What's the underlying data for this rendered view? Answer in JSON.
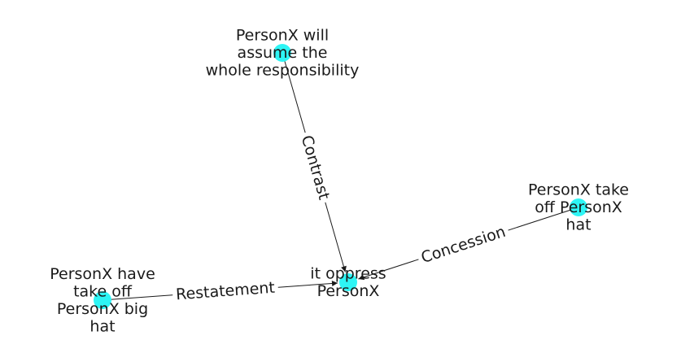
{
  "graph": {
    "node_color": "#2ef5f5",
    "edge_color": "#1a1a1a",
    "directed": true,
    "nodes": [
      {
        "id": "center",
        "label_lines": [
          "it oppress",
          "PersonX"
        ]
      },
      {
        "id": "top",
        "label_lines": [
          "PersonX will",
          "assume the",
          "whole responsibility"
        ]
      },
      {
        "id": "right",
        "label_lines": [
          "PersonX take",
          "off PersonX",
          "hat"
        ]
      },
      {
        "id": "left",
        "label_lines": [
          "PersonX have",
          "take off",
          "PersonX big",
          "hat"
        ]
      }
    ],
    "edges": [
      {
        "source": "top",
        "target": "center",
        "label": "Contrast"
      },
      {
        "source": "right",
        "target": "center",
        "label": "Concession"
      },
      {
        "source": "left",
        "target": "center",
        "label": "Restatement"
      }
    ]
  }
}
